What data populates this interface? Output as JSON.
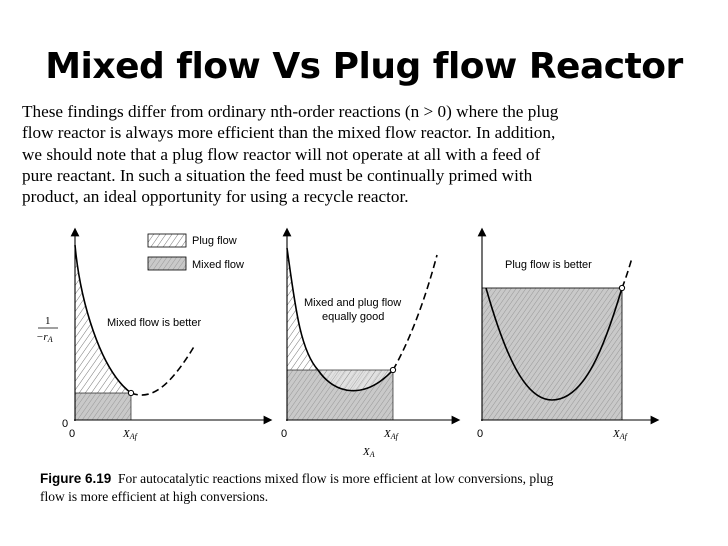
{
  "title": "Mixed flow Vs Plug flow Reactor",
  "paragraph_lines": [
    "These findings differ from ordinary nth-order reactions (n > 0) where the plug",
    "flow reactor is always more efficient than the mixed flow reactor. In addition,",
    "we should note that a plug flow reactor will not operate at all with a feed of",
    "pure reactant. In such a situation the feed must be continually primed with",
    "product, an ideal opportunity for using a recycle reactor."
  ],
  "figure": {
    "legend": {
      "plug": "Plug flow",
      "mixed": "Mixed flow"
    },
    "y_axis_label_num": "1",
    "y_axis_label_den": "−r",
    "y_axis_label_sub": "A",
    "origin_y": "0",
    "origin_x": "0",
    "x_label": "X",
    "x_label_sub": "A",
    "xaf_label": "X",
    "xaf_sub": "Af",
    "panel1_label": "Mixed flow is better",
    "panel2_label_line1": "Mixed and plug flow",
    "panel2_label_line2": "equally good",
    "panel3_label": "Plug flow is better"
  },
  "caption": {
    "label": "Figure 6.19",
    "text_line1": "For autocatalytic reactions mixed flow is more efficient at low conversions, plug",
    "text_line2": "flow is more efficient at high conversions."
  }
}
